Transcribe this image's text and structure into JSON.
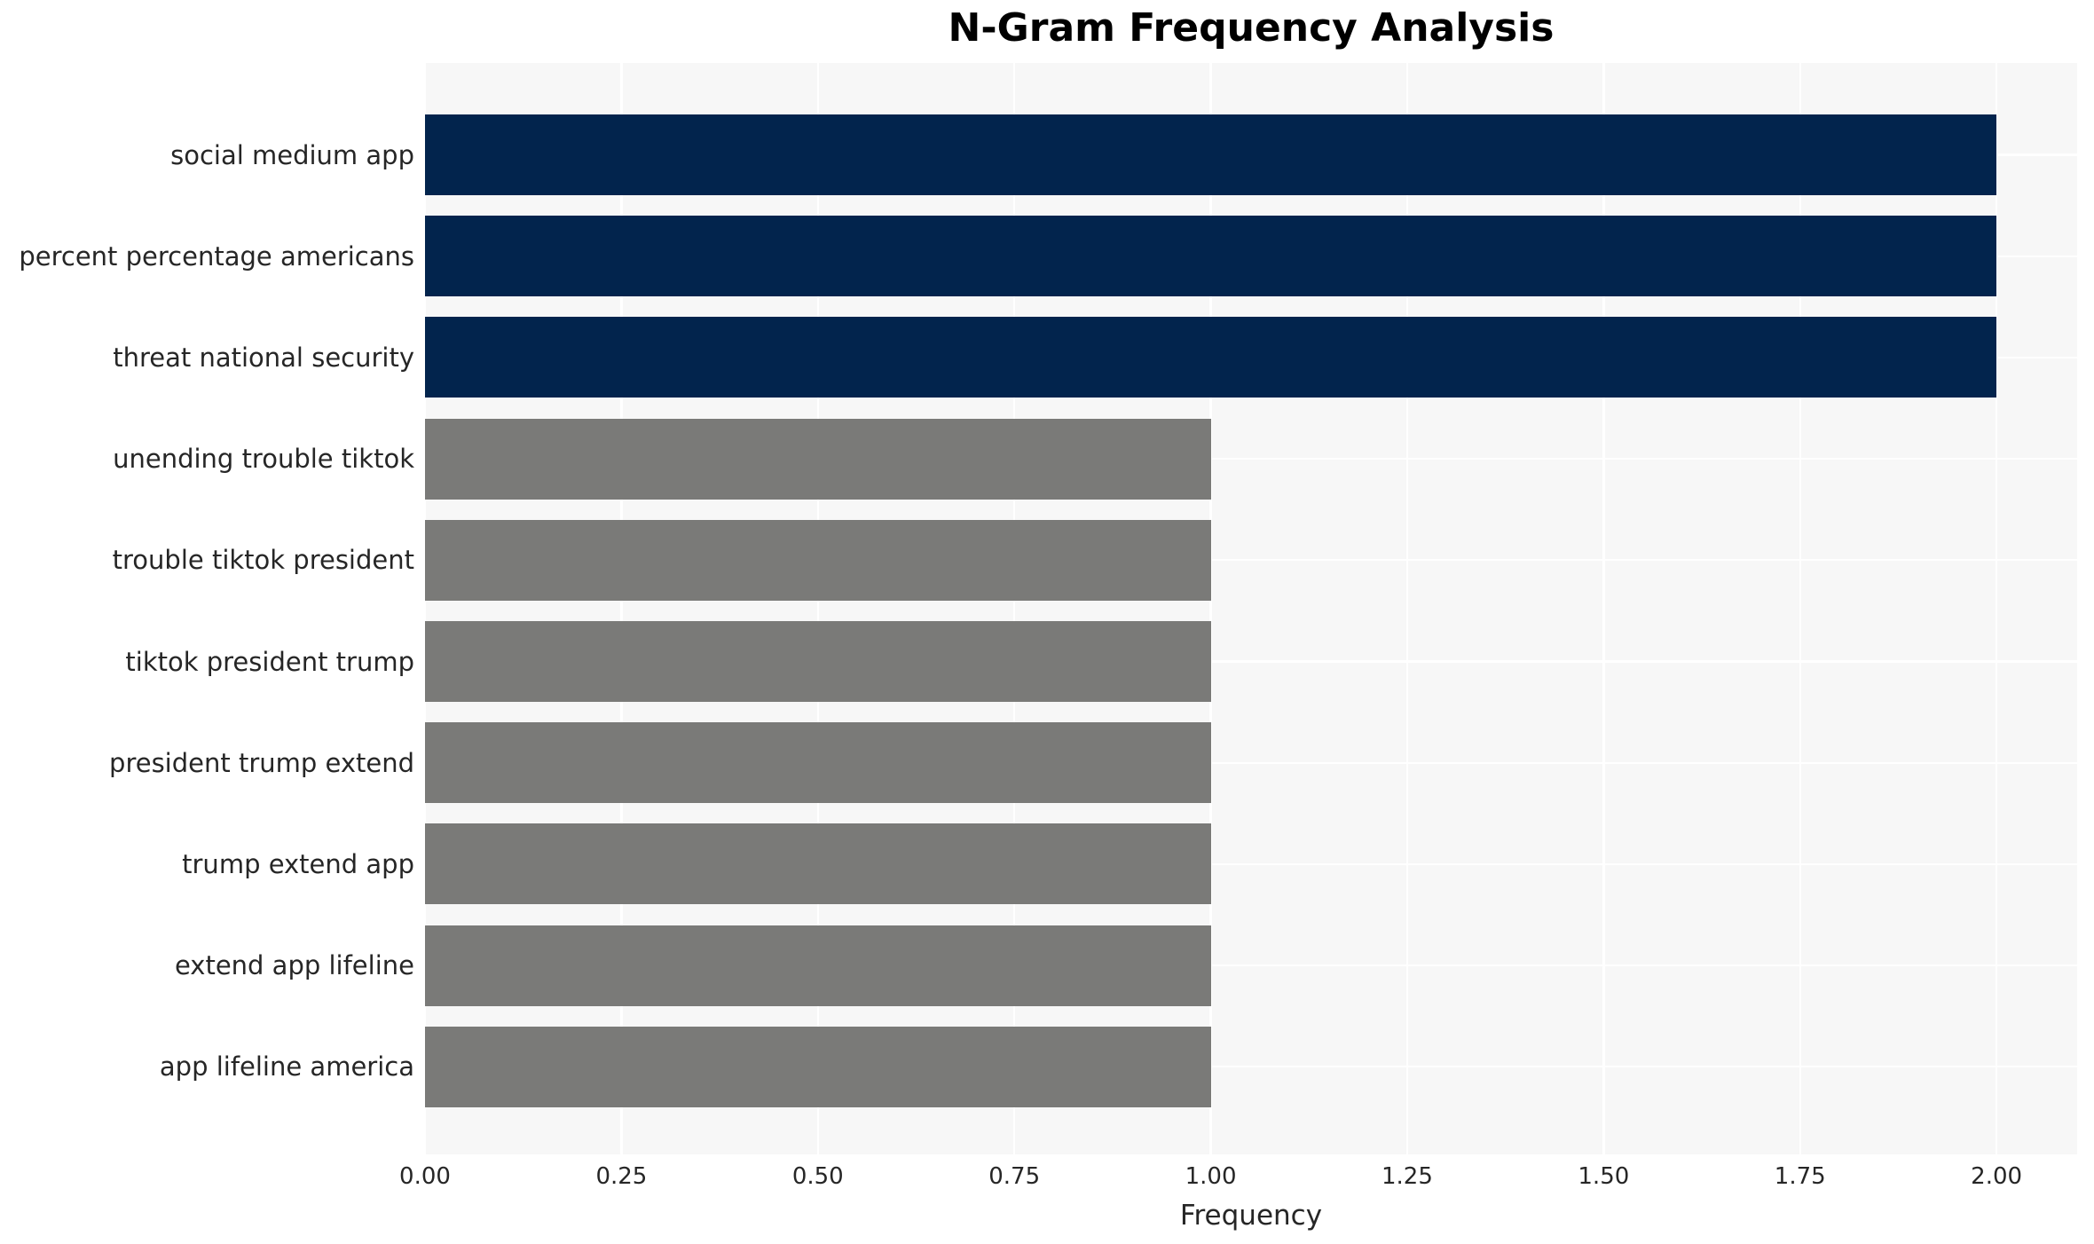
{
  "chart_data": {
    "type": "bar",
    "orientation": "horizontal",
    "title": "N-Gram Frequency Analysis",
    "xlabel": "Frequency",
    "ylabel": "",
    "categories": [
      "social medium app",
      "percent percentage americans",
      "threat national security",
      "unending trouble tiktok",
      "trouble tiktok president",
      "tiktok president trump",
      "president trump extend",
      "trump extend app",
      "extend app lifeline",
      "app lifeline america"
    ],
    "values": [
      2,
      2,
      2,
      1,
      1,
      1,
      1,
      1,
      1,
      1
    ],
    "bar_colors": [
      "#02244d",
      "#02244d",
      "#02244d",
      "#7a7a78",
      "#7a7a78",
      "#7a7a78",
      "#7a7a78",
      "#7a7a78",
      "#7a7a78",
      "#7a7a78"
    ],
    "xticks": [
      0,
      0.25,
      0.5,
      0.75,
      1.0,
      1.25,
      1.5,
      1.75,
      2.0
    ],
    "xtick_labels": [
      "0.00",
      "0.25",
      "0.50",
      "0.75",
      "1.00",
      "1.25",
      "1.50",
      "1.75",
      "2.00"
    ],
    "xlim": [
      0,
      2.1026
    ],
    "grid": true,
    "legend": null,
    "colors": {
      "figure_background": "#ffffff",
      "plot_background": "#f7f7f7",
      "gridline": "#ffffff",
      "bar_high": "#02244d",
      "bar_low": "#7a7a78",
      "text": "#262626",
      "title": "#000000"
    }
  }
}
